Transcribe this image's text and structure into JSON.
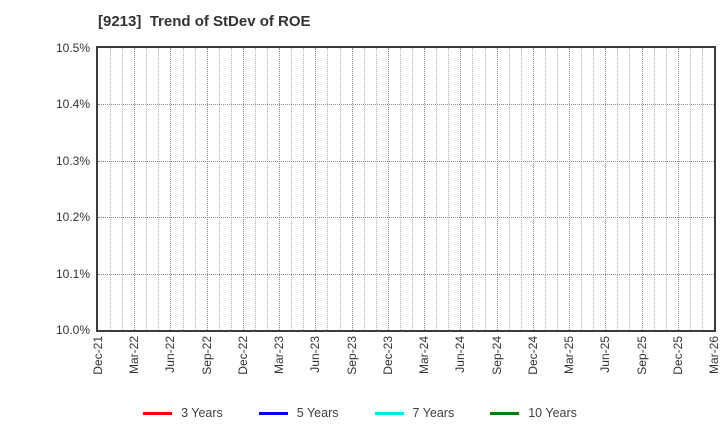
{
  "chart_data": {
    "type": "line",
    "title": "[9213]  Trend of StDev of ROE",
    "x_tick_labels": [
      "Dec-21",
      "Mar-22",
      "Jun-22",
      "Sep-22",
      "Dec-22",
      "Mar-23",
      "Jun-23",
      "Sep-23",
      "Dec-23",
      "Mar-24",
      "Jun-24",
      "Sep-24",
      "Dec-24",
      "Mar-25",
      "Jun-25",
      "Sep-25",
      "Dec-25",
      "Mar-26"
    ],
    "x_minor_divisions_per_interval": 3,
    "y_ticks": [
      10.0,
      10.1,
      10.2,
      10.3,
      10.4,
      10.5
    ],
    "y_tick_labels": [
      "10.0%",
      "10.1%",
      "10.2%",
      "10.3%",
      "10.4%",
      "10.5%"
    ],
    "ylim": [
      10.0,
      10.5
    ],
    "grid": true,
    "legend_position": "bottom",
    "series": [
      {
        "name": "3 Years",
        "color": "#ff0000",
        "values": []
      },
      {
        "name": "5 Years",
        "color": "#0000ee",
        "values": []
      },
      {
        "name": "7 Years",
        "color": "#00e5ee",
        "values": []
      },
      {
        "name": "10 Years",
        "color": "#008000",
        "values": []
      }
    ]
  },
  "colors": {
    "axis": "#3c3c3c",
    "grid_major": "#8a8a8a",
    "grid_minor": "#b5b5b5",
    "text": "#333333",
    "background": "#ffffff"
  }
}
